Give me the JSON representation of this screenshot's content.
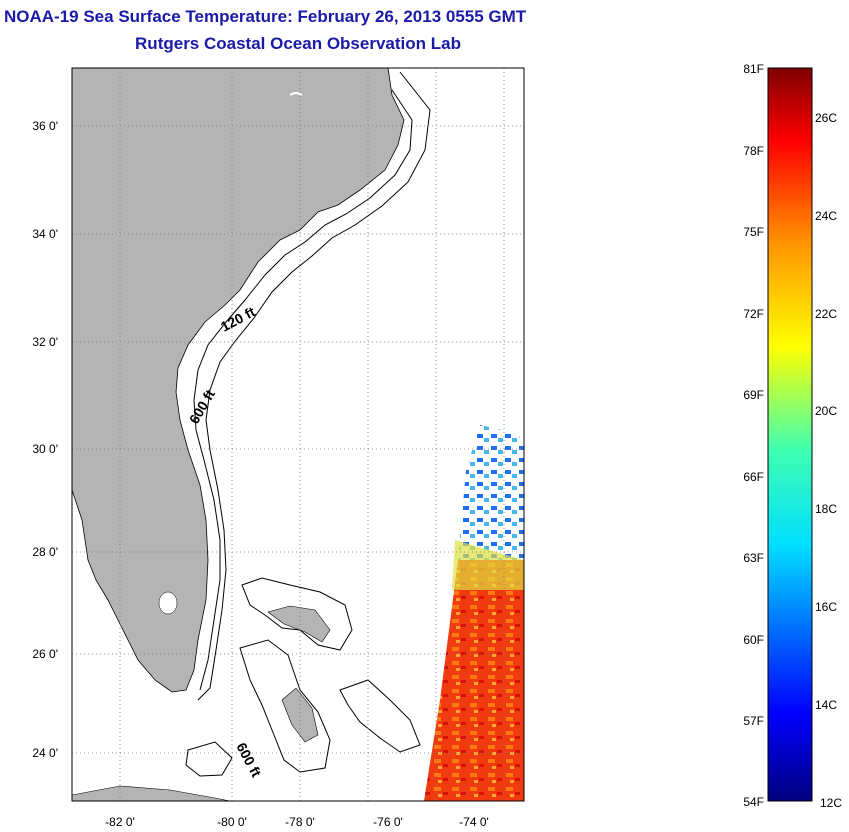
{
  "title": "NOAA-19 Sea Surface Temperature:  February 26, 2013 0555 GMT",
  "subtitle": "Rutgers Coastal Ocean Observation Lab",
  "map": {
    "lat_labels": [
      "36 0'",
      "34 0'",
      "32 0'",
      "30 0'",
      "28 0'",
      "26 0'",
      "24 0'"
    ],
    "lon_labels": [
      "-82 0'",
      "-80 0'",
      "-78 0'",
      "-76 0'",
      "-74 0'"
    ],
    "contour_labels": [
      "120 ft",
      "600 ft",
      "600 ft"
    ],
    "land_color": "#b4b4b4"
  },
  "colorbar": {
    "fahrenheit_labels": [
      "81F",
      "78F",
      "75F",
      "72F",
      "69F",
      "66F",
      "63F",
      "60F",
      "57F",
      "54F"
    ],
    "celsius_labels": [
      "26C",
      "24C",
      "22C",
      "20C",
      "18C",
      "16C",
      "14C",
      "12C"
    ],
    "colormap": "jet"
  }
}
